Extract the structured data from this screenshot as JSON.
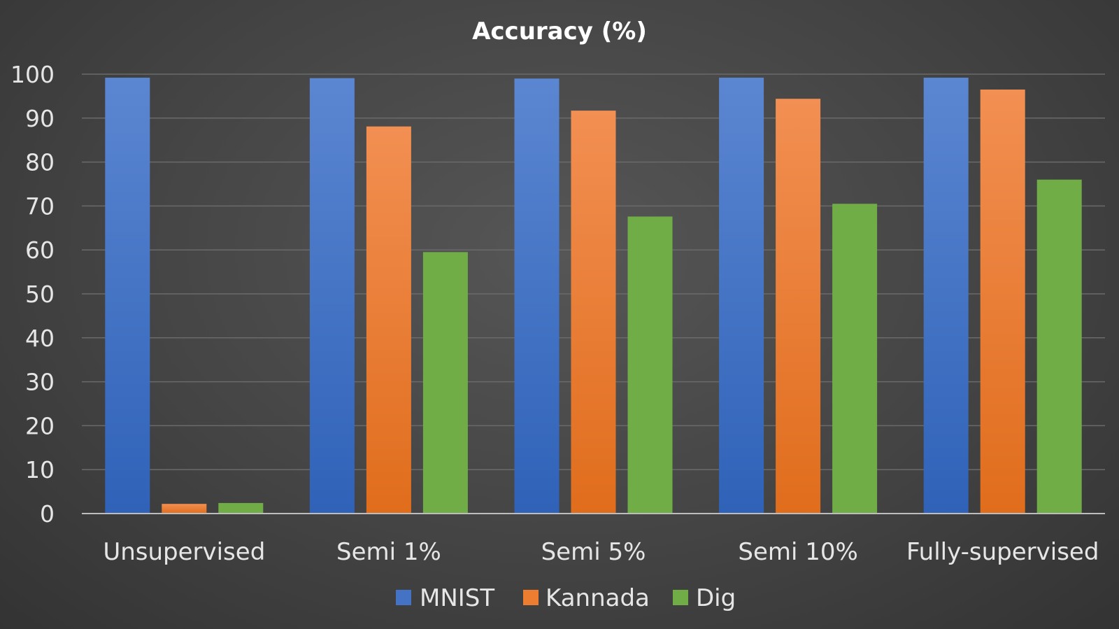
{
  "chart_data": {
    "type": "bar",
    "title": "Accuracy (%)",
    "categories": [
      "Unsupervised",
      "Semi 1%",
      "Semi 5%",
      "Semi 10%",
      "Fully-supervised"
    ],
    "series": [
      {
        "name": "MNIST",
        "color": "#4472C4",
        "values": [
          99.2,
          99.1,
          99.0,
          99.2,
          99.2
        ]
      },
      {
        "name": "Kannada",
        "color": "#ED7D31",
        "values": [
          2.2,
          88.1,
          91.7,
          94.4,
          96.5
        ]
      },
      {
        "name": "Dig",
        "color": "#70AD47",
        "values": [
          2.4,
          59.5,
          67.6,
          70.5,
          76.0
        ]
      }
    ],
    "ylim": [
      0,
      100
    ],
    "yticks": [
      0,
      10,
      20,
      30,
      40,
      50,
      60,
      70,
      80,
      90,
      100
    ],
    "grid": true,
    "legend_position": "bottom"
  }
}
